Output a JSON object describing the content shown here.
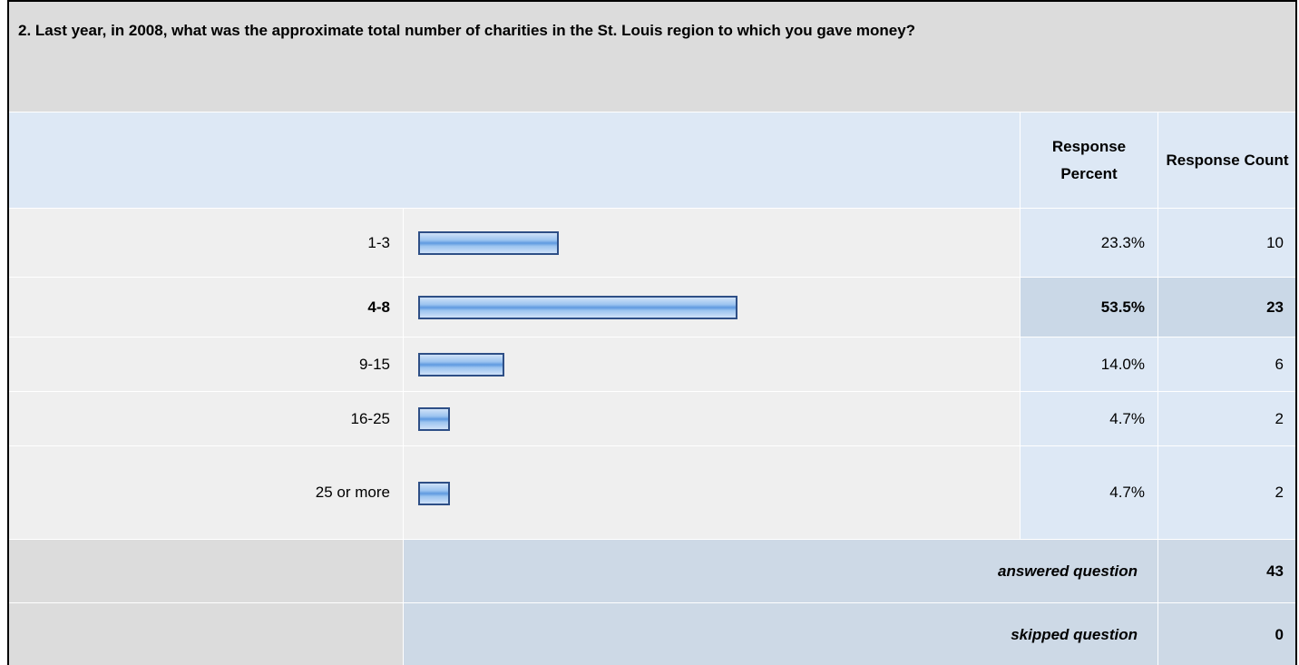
{
  "chart_data": {
    "type": "bar",
    "orientation": "horizontal",
    "title": "2. Last year, in 2008, what was the approximate total number of charities in the St. Louis region to which you gave money?",
    "headers": [
      "Response Percent",
      "Response Count"
    ],
    "categories": [
      "1-3",
      "4-8",
      "9-15",
      "16-25",
      "25 or more"
    ],
    "values": [
      23.3,
      53.5,
      14.0,
      4.7,
      4.7
    ],
    "value_labels": [
      "23.3%",
      "53.5%",
      "14.0%",
      "4.7%",
      "4.7%"
    ],
    "counts": [
      10,
      23,
      6,
      2,
      2
    ],
    "xlim": [
      0,
      100
    ],
    "color": "#7fb2ea",
    "summary": [
      {
        "label": "answered question",
        "value": 43
      },
      {
        "label": "skipped question",
        "value": 0
      }
    ]
  }
}
